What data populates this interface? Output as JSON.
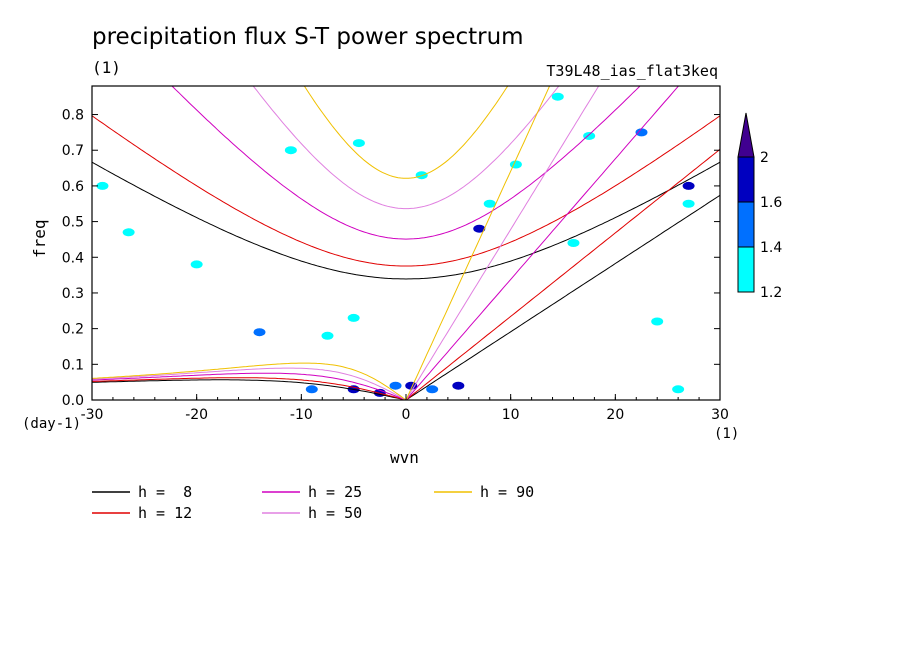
{
  "chart_data": {
    "type": "line",
    "title": "precipitation flux S-T power spectrum",
    "subtitle_left": "(1)",
    "subtitle_right": "T39L48_ias_flat3keq",
    "xlabel": "wvn",
    "ylabel": "freq",
    "x_unit": "(1)",
    "y_unit": "(day-1)",
    "xlim": [
      -30,
      30
    ],
    "ylim": [
      0,
      0.88
    ],
    "xticks": [
      -30,
      -20,
      -10,
      0,
      10,
      20,
      30
    ],
    "yticks": [
      0.0,
      0.1,
      0.2,
      0.3,
      0.4,
      0.5,
      0.6,
      0.7,
      0.8
    ],
    "ytick_labels": [
      "0.0",
      "0.1",
      "0.2",
      "0.3",
      "0.4",
      "0.5",
      "0.6",
      "0.7",
      "0.8"
    ],
    "series": [
      {
        "name": "h =  8",
        "h": 8,
        "color": "#000000"
      },
      {
        "name": "h = 12",
        "h": 12,
        "color": "#e00000"
      },
      {
        "name": "h = 25",
        "h": 25,
        "color": "#d000c0"
      },
      {
        "name": "h = 50",
        "h": 50,
        "color": "#e080e0"
      },
      {
        "name": "h = 90",
        "h": 90,
        "color": "#f0c000"
      }
    ],
    "colorbar": {
      "levels": [
        "1.2",
        "1.4",
        "1.6",
        "2"
      ],
      "colors": [
        "#00ffff",
        "#0070ff",
        "#0000c0",
        "#400090"
      ]
    },
    "contour_blobs": [
      {
        "x": -29,
        "y": 0.6,
        "level": 0
      },
      {
        "x": -26.5,
        "y": 0.47,
        "level": 0
      },
      {
        "x": -20,
        "y": 0.38,
        "level": 0
      },
      {
        "x": -14,
        "y": 0.19,
        "level": 1
      },
      {
        "x": -11,
        "y": 0.7,
        "level": 0
      },
      {
        "x": -7.5,
        "y": 0.18,
        "level": 0
      },
      {
        "x": -5,
        "y": 0.23,
        "level": 0
      },
      {
        "x": -9,
        "y": 0.03,
        "level": 1
      },
      {
        "x": -5,
        "y": 0.03,
        "level": 2
      },
      {
        "x": -2.5,
        "y": 0.02,
        "level": 2
      },
      {
        "x": -1,
        "y": 0.04,
        "level": 1
      },
      {
        "x": 0.5,
        "y": 0.04,
        "level": 2
      },
      {
        "x": 2.5,
        "y": 0.03,
        "level": 1
      },
      {
        "x": 5,
        "y": 0.04,
        "level": 2
      },
      {
        "x": 7,
        "y": 0.48,
        "level": 2
      },
      {
        "x": 8,
        "y": 0.55,
        "level": 0
      },
      {
        "x": 10.5,
        "y": 0.66,
        "level": 0
      },
      {
        "x": 14.5,
        "y": 0.85,
        "level": 0
      },
      {
        "x": 16,
        "y": 0.44,
        "level": 0
      },
      {
        "x": 22.5,
        "y": 0.75,
        "level": 1
      },
      {
        "x": 24,
        "y": 0.22,
        "level": 0
      },
      {
        "x": 26,
        "y": 0.03,
        "level": 0
      },
      {
        "x": 27,
        "y": 0.6,
        "level": 2
      },
      {
        "x": 27,
        "y": 0.55,
        "level": 0
      },
      {
        "x": 1.5,
        "y": 0.63,
        "level": 0
      },
      {
        "x": -4.5,
        "y": 0.72,
        "level": 0
      },
      {
        "x": 17.5,
        "y": 0.74,
        "level": 0
      }
    ]
  }
}
